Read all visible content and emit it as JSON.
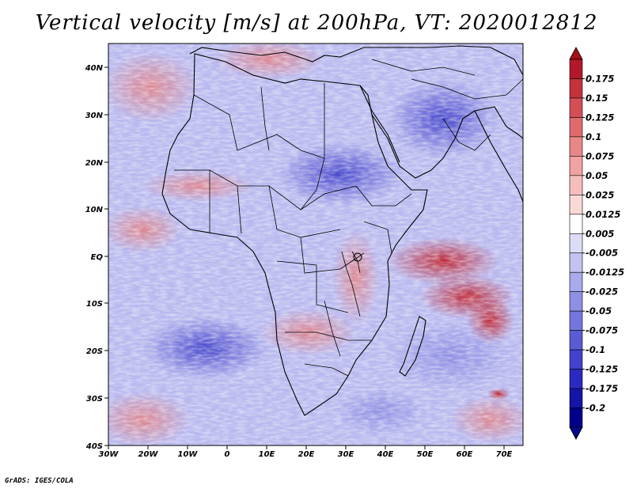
{
  "title": "Vertical velocity [m/s] at 200hPa, VT: 2020012812",
  "footer": "GrADS: IGES/COLA",
  "map": {
    "lon_ticks": [
      "30W",
      "20W",
      "10W",
      "0",
      "10E",
      "20E",
      "30E",
      "40E",
      "50E",
      "60E",
      "70E"
    ],
    "lat_ticks": [
      "40N",
      "30N",
      "20N",
      "10N",
      "EQ",
      "10S",
      "20S",
      "30S",
      "40S"
    ],
    "lon_range": [
      -30,
      75
    ],
    "lat_range": [
      -40,
      44
    ]
  },
  "colorbar": {
    "labels": [
      "0.175",
      "0.15",
      "0.125",
      "0.1",
      "0.075",
      "0.05",
      "0.025",
      "0.0125",
      "0.005",
      "-0.005",
      "-0.0125",
      "-0.025",
      "-0.05",
      "-0.075",
      "-0.1",
      "-0.125",
      "-0.175",
      "-0.2"
    ],
    "colors": [
      "#b2182b",
      "#c4323c",
      "#d44f55",
      "#e06b6e",
      "#e98787",
      "#f0a3a1",
      "#f5bebb",
      "#f9d9d6",
      "#ffffff",
      "#dcdcf7",
      "#c3c3f2",
      "#a9a9ec",
      "#8f8fe5",
      "#7575dd",
      "#5b5bd5",
      "#4242cc",
      "#2a2ac0",
      "#1414a8",
      "#00008b"
    ],
    "top_color": "#a50f15",
    "bottom_color": "#08088a"
  }
}
